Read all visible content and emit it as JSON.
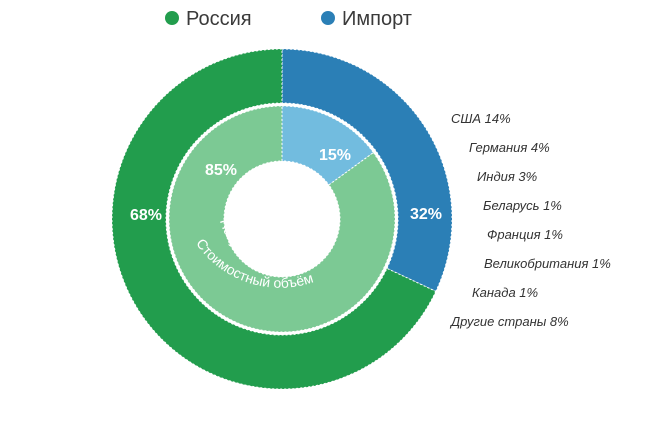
{
  "colors": {
    "russia_outer": "#229d4d",
    "import_outer": "#2b7fb6",
    "russia_inner": "#7cc994",
    "import_inner": "#72bcdf",
    "background": "#ffffff"
  },
  "chart_data": {
    "type": "pie",
    "legend": [
      {
        "name": "Россия",
        "color": "#229d4d"
      },
      {
        "name": "Импорт",
        "color": "#2b7fb6"
      }
    ],
    "rings": [
      {
        "label": "Стоимостный объём",
        "slices": [
          {
            "name": "Импорт",
            "value": 32,
            "label": "32%"
          },
          {
            "name": "Россия",
            "value": 68,
            "label": "68%"
          }
        ]
      },
      {
        "label": "Натуральный объём",
        "slices": [
          {
            "name": "Импорт",
            "value": 15,
            "label": "15%"
          },
          {
            "name": "Россия",
            "value": 85,
            "label": "85%"
          }
        ]
      }
    ],
    "import_breakdown": [
      {
        "country": "США",
        "value": 14,
        "label": "США 14%"
      },
      {
        "country": "Германия",
        "value": 4,
        "label": "Германия 4%"
      },
      {
        "country": "Индия",
        "value": 3,
        "label": "Индия 3%"
      },
      {
        "country": "Беларусь",
        "value": 1,
        "label": "Беларусь 1%"
      },
      {
        "country": "Франция",
        "value": 1,
        "label": "Франция 1%"
      },
      {
        "country": "Великобритания",
        "value": 1,
        "label": "Великобритания 1%"
      },
      {
        "country": "Канада",
        "value": 1,
        "label": "Канада 1%"
      },
      {
        "country": "Другие страны",
        "value": 8,
        "label": "Другие страны 8%"
      }
    ]
  }
}
